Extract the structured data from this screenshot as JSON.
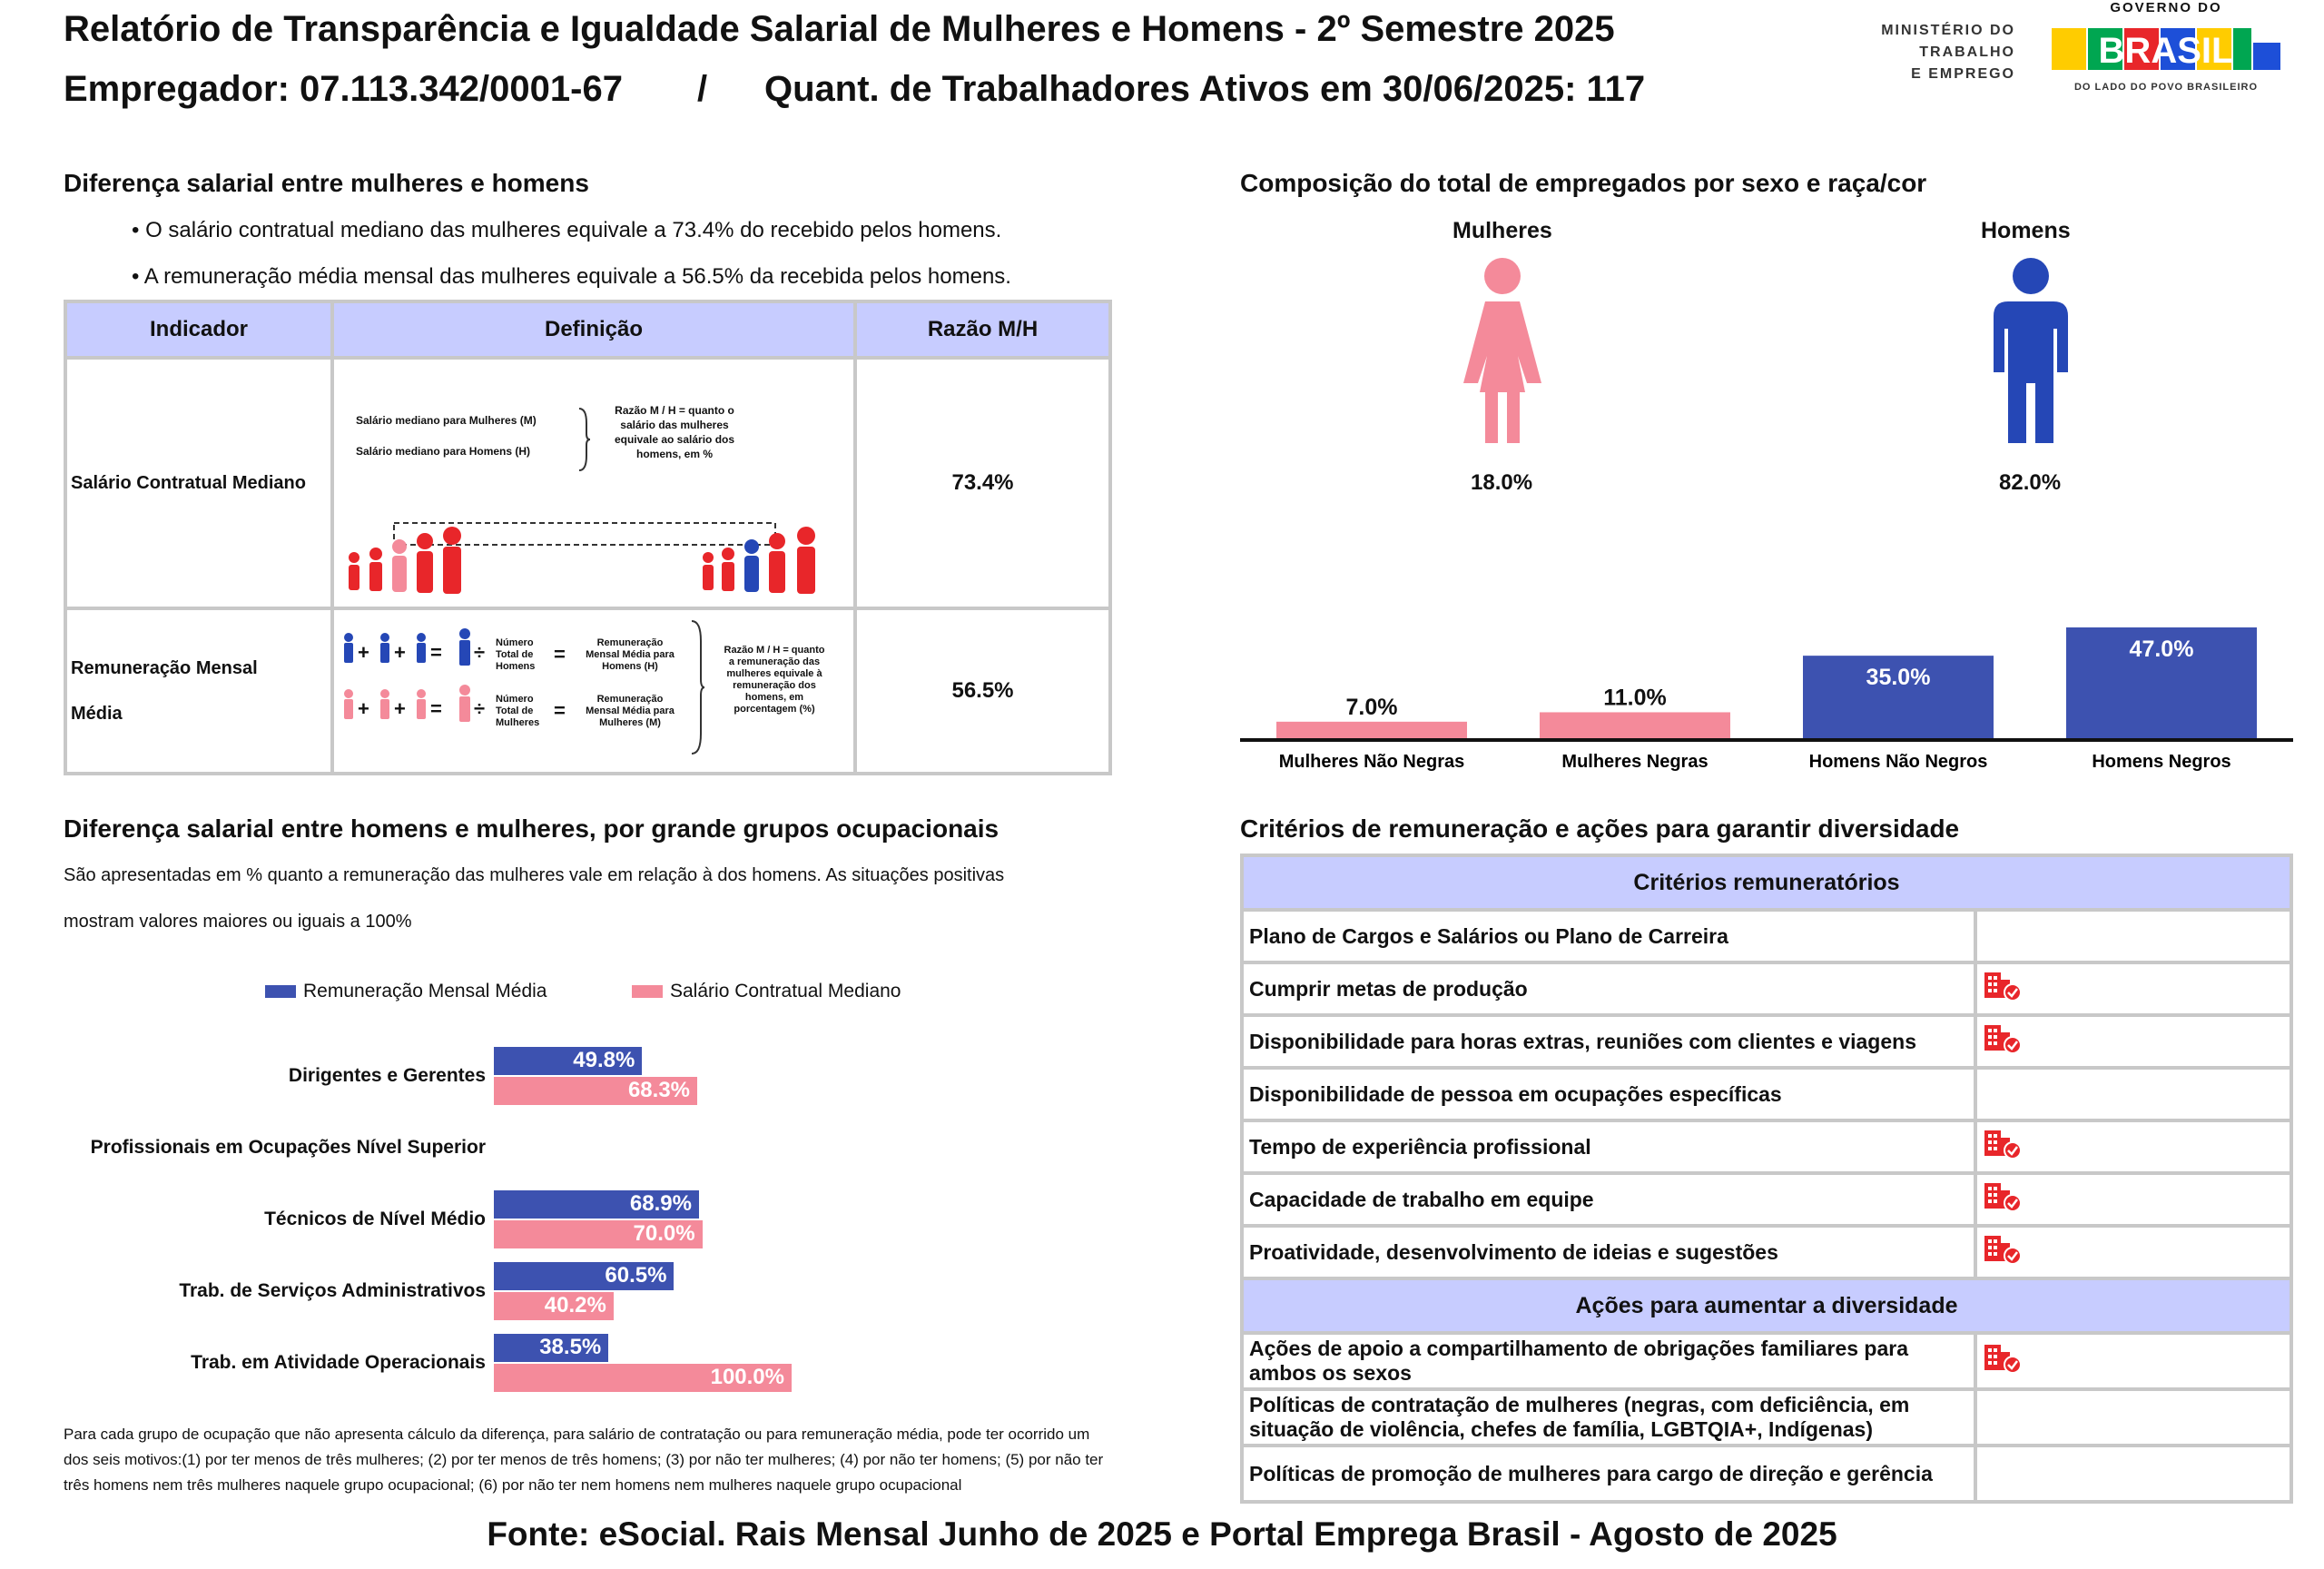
{
  "header": {
    "title": "Relatório de Transparência e Igualdade Salarial de Mulheres e Homens - 2º Semestre 2025",
    "employer": "Empregador: 07.113.342/0001-67",
    "separator": "/",
    "workers": "Quant. de Trabalhadores Ativos em 30/06/2025: 117",
    "logo_mte": [
      "MINISTÉRIO DO",
      "TRABALHO",
      "E EMPREGO"
    ],
    "logo_gov_top": "GOVERNO DO",
    "logo_gov_brasil": "BRASIL",
    "logo_gov_bottom": "DO LADO DO POVO BRASILEIRO"
  },
  "salary_diff": {
    "title": "Diferença salarial entre mulheres e homens",
    "bullets": [
      "• O salário contratual mediano das mulheres equivale a 73.4% do recebido pelos homens.",
      "• A remuneração média mensal das mulheres equivale a 56.5% da recebida pelos homens."
    ],
    "table": {
      "headers": [
        "Indicador",
        "Definição",
        "Razão M/H"
      ],
      "rows": [
        {
          "indicator": "Salário Contratual Mediano",
          "def_left": [
            "Salário mediano para Mulheres (M)",
            "Salário mediano para Homens (H)"
          ],
          "def_right": [
            "Razão M / H = quanto o",
            "salário das mulheres",
            "equivale ao salário dos",
            "homens, em %"
          ],
          "ratio": "73.4%"
        },
        {
          "indicator": [
            "Remuneração Mensal",
            "Média"
          ],
          "def_num_total_h": [
            "Número",
            "Total de",
            "Homens"
          ],
          "def_rem_h": [
            "Remuneração",
            "Mensal Média para",
            "Homens (H)"
          ],
          "def_num_total_m": [
            "Número",
            "Total de",
            "Mulheres"
          ],
          "def_rem_m": [
            "Remuneração",
            "Mensal Média para",
            "Mulheres (M)"
          ],
          "def_right": [
            "Razão M / H = quanto",
            "a remuneração das",
            "mulheres equivale à",
            "remuneração dos",
            "homens, em",
            "porcentagem (%)"
          ],
          "ratio": "56.5%"
        }
      ]
    }
  },
  "composition": {
    "title": "Composição do total de empregados por sexo e raça/cor",
    "women_label": "Mulheres",
    "men_label": "Homens",
    "women_pct": "18.0%",
    "men_pct": "82.0%",
    "colors": {
      "women": "#f48a9a",
      "men": "#2547b6"
    }
  },
  "chart_data": [
    {
      "type": "bar",
      "categories": [
        "Mulheres Não Negras",
        "Mulheres Negras",
        "Homens Não Negros",
        "Homens Negros"
      ],
      "values": [
        7.0,
        11.0,
        35.0,
        47.0
      ],
      "labels": [
        "7.0%",
        "11.0%",
        "35.0%",
        "47.0%"
      ],
      "colors": [
        "#f48a9a",
        "#f48a9a",
        "#3d52b0",
        "#3d52b0"
      ],
      "ylim": [
        0,
        47
      ]
    },
    {
      "type": "bar",
      "orientation": "horizontal",
      "categories": [
        "Dirigentes e Gerentes",
        "Profissionais em Ocupações Nível Superior",
        "Técnicos de Nível Médio",
        "Trab. de Serviços Administrativos",
        "Trab. em Atividade Operacionais"
      ],
      "series": [
        {
          "name": "Remuneração Mensal Média",
          "values": [
            49.8,
            null,
            68.9,
            60.5,
            38.5
          ],
          "labels": [
            "49.8%",
            "",
            "68.9%",
            "60.5%",
            "38.5%"
          ],
          "color": "#3d52b0"
        },
        {
          "name": "Salário Contratual Mediano",
          "values": [
            68.3,
            null,
            70.0,
            40.2,
            100.0
          ],
          "labels": [
            "68.3%",
            "",
            "70.0%",
            "40.2%",
            "100.0%"
          ],
          "color": "#f48a9a"
        }
      ],
      "xlim": [
        0,
        100
      ],
      "legend": "top"
    }
  ],
  "occupational": {
    "title": "Diferença salarial entre homens e mulheres, por grande grupos ocupacionais",
    "desc1": "São apresentadas em % quanto a remuneração das mulheres vale em relação à dos homens. As situações positivas",
    "desc2": "mostram valores maiores ou iguais a 100%",
    "footnote": "Para cada grupo de ocupação que não apresenta cálculo da diferença, para salário de contratação ou para remuneração média, pode ter ocorrido um dos seis motivos:(1) por ter menos de três mulheres; (2) por ter menos de três homens; (3) por não ter mulheres; (4) por não ter homens; (5) por não ter três homens nem três mulheres naquele grupo ocupacional; (6) por não ter nem homens nem mulheres naquele grupo ocupacional"
  },
  "criteria": {
    "title": "Critérios de remuneração e ações para garantir diversidade",
    "header1": "Critérios remuneratórios",
    "items1": [
      {
        "label": "Plano de Cargos e Salários ou Plano de Carreira",
        "check": false
      },
      {
        "label": "Cumprir metas de produção",
        "check": true
      },
      {
        "label": "Disponibilidade para horas extras, reuniões com clientes e viagens",
        "check": true
      },
      {
        "label": "Disponibilidade de pessoa em ocupações específicas",
        "check": false
      },
      {
        "label": "Tempo de experiência profissional",
        "check": true
      },
      {
        "label": "Capacidade de trabalho em equipe",
        "check": true
      },
      {
        "label": "Proatividade, desenvolvimento de ideias e sugestões",
        "check": true
      }
    ],
    "header2": "Ações para aumentar a diversidade",
    "items2": [
      {
        "label": "Ações de apoio a compartilhamento de obrigações familiares para ambos os sexos",
        "check": true
      },
      {
        "label": "Políticas de contratação de mulheres (negras, com deficiência, em situação de violência, chefes de família, LGBTQIA+, Indígenas)",
        "check": false
      },
      {
        "label": "Políticas de promoção de mulheres para cargo de direção e gerência",
        "check": false
      }
    ],
    "check_icon": "building-check-icon",
    "check_color": "#e8262a"
  },
  "footer": "Fonte: eSocial. Rais Mensal Junho de 2025 e Portal Emprega Brasil - Agosto de 2025"
}
